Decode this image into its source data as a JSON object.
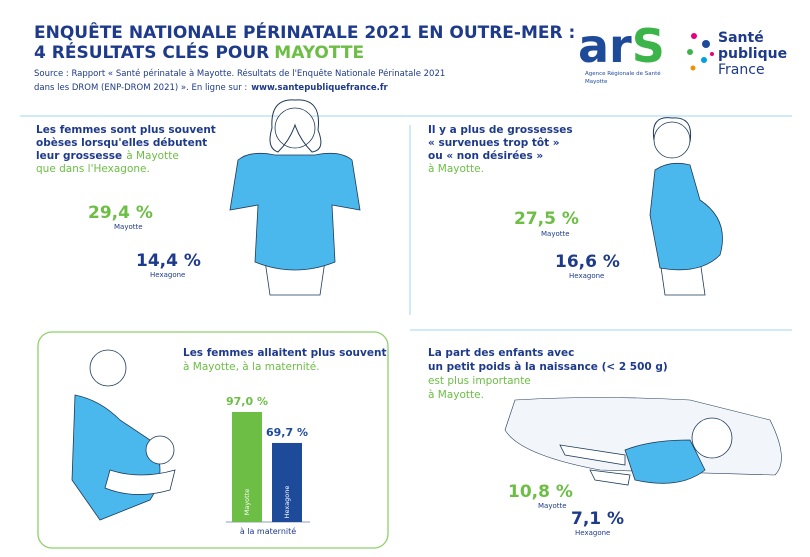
{
  "header": {
    "title_line1": "ENQUÊTE NATIONALE PÉRINATALE 2021 EN OUTRE-MER :",
    "title_line2": "4 RÉSULTATS CLÉS POUR",
    "title_highlight": "MAYOTTE",
    "source_line1": "Source : Rapport « Santé périnatale à Mayotte. Résultats de l'Enquête Nationale Périnatale 2021",
    "source_line2": "dans les DROM (ENP-DROM 2021) ». En ligne sur :",
    "source_link": "www.santepubliquefrance.fr"
  },
  "logos": {
    "ars_letters": "ar",
    "ars_s": "S",
    "ars_sub": "Agence Régionale de Santé",
    "ars_place": "Mayotte",
    "spf_line1": "Santé",
    "spf_line2": "publique",
    "spf_line3": "France"
  },
  "panels": [
    {
      "bold": [
        "Les femmes sont plus souvent",
        "obèses lorsqu'elles débutent",
        "leur grossesse"
      ],
      "green": [
        "à Mayotte",
        "que dans l'Hexagone."
      ],
      "stats": [
        {
          "value": "29,4 %",
          "label": "Mayotte"
        },
        {
          "value": "14,4 %",
          "label": "Hexagone"
        }
      ]
    },
    {
      "bold": [
        "Il y a plus de grossesses",
        "« survenues trop tôt »",
        "ou « non désirées »"
      ],
      "green": [
        "à Mayotte."
      ],
      "stats": [
        {
          "value": "27,5 %",
          "label": "Mayotte"
        },
        {
          "value": "16,6 %",
          "label": "Hexagone"
        }
      ]
    },
    {
      "bold": [
        "Les femmes allaitent plus souvent"
      ],
      "green": [
        "à Mayotte, à la maternité."
      ]
    },
    {
      "bold": [
        "La part des enfants avec",
        "un petit poids à la naissance (< 2 500 g)"
      ],
      "green": [
        "est plus importante",
        "à Mayotte."
      ],
      "stats": [
        {
          "value": "10,8 %",
          "label": "Mayotte"
        },
        {
          "value": "7,1 %",
          "label": "Hexagone"
        }
      ]
    }
  ],
  "chart_data": {
    "type": "bar",
    "categories": [
      "Mayotte",
      "Hexagone"
    ],
    "values": [
      97.0,
      69.7
    ],
    "value_labels": [
      "97,0 %",
      "69,7 %"
    ],
    "colors": [
      "#6cbe45",
      "#1e4a9a"
    ],
    "x_label": "à la maternité"
  }
}
